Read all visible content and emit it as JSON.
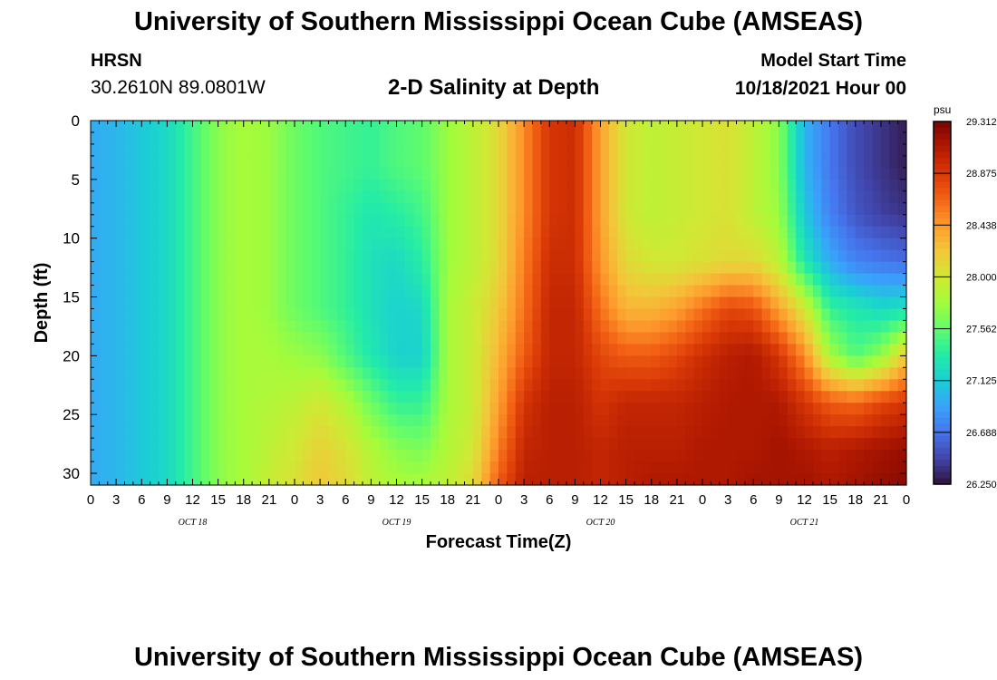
{
  "header": {
    "title": "University of Southern Mississippi Ocean Cube (AMSEAS)",
    "station": "HRSN",
    "coords": "30.2610N  89.0801W",
    "subtitle": "2-D Salinity at Depth",
    "start_label": "Model Start Time",
    "start_value": "10/18/2021 Hour 00"
  },
  "footer": {
    "title": "University of Southern Mississippi Ocean Cube (AMSEAS)"
  },
  "chart_data": {
    "type": "heatmap",
    "xlabel": "Forecast Time(Z)",
    "ylabel": "Depth (ft)",
    "x_unit": "hours since model start",
    "xlim": [
      0,
      96
    ],
    "ylim": [
      0,
      31
    ],
    "y_inverted": true,
    "x_tick_labels": [
      "0",
      "3",
      "6",
      "9",
      "12",
      "15",
      "18",
      "21",
      "0",
      "3",
      "6",
      "9",
      "12",
      "15",
      "18",
      "21",
      "0",
      "3",
      "6",
      "9",
      "12",
      "15",
      "18",
      "21",
      "0",
      "3",
      "6",
      "9",
      "12",
      "15",
      "18",
      "21",
      "0"
    ],
    "x_tick_hours": [
      0,
      3,
      6,
      9,
      12,
      15,
      18,
      21,
      24,
      27,
      30,
      33,
      36,
      39,
      42,
      45,
      48,
      51,
      54,
      57,
      60,
      63,
      66,
      69,
      72,
      75,
      78,
      81,
      84,
      87,
      90,
      93,
      96
    ],
    "day_labels": [
      {
        "hour": 12,
        "text": "OCT 18"
      },
      {
        "hour": 36,
        "text": "OCT 19"
      },
      {
        "hour": 60,
        "text": "OCT 20"
      },
      {
        "hour": 84,
        "text": "OCT 21"
      }
    ],
    "y_ticks": [
      0,
      5,
      10,
      15,
      20,
      25,
      30
    ],
    "colorbar": {
      "unit": "psu",
      "min": 26.25,
      "max": 29.312,
      "tick_labels": [
        "29.312",
        "28.875",
        "28.438",
        "28.000",
        "27.562",
        "27.125",
        "26.688",
        "26.250"
      ],
      "colors": [
        "#30123b",
        "#4145ab",
        "#4675ed",
        "#39a2fc",
        "#1bcfd4",
        "#24eca6",
        "#61fc6c",
        "#a4fc3b",
        "#d1e834",
        "#f3c63a",
        "#fe9b2d",
        "#f36315",
        "#d93806",
        "#b11901",
        "#7a0402"
      ]
    },
    "depths_ft": [
      0,
      4,
      8,
      12,
      16,
      20,
      24,
      28,
      31
    ],
    "hours": [
      0,
      3,
      6,
      9,
      12,
      15,
      18,
      21,
      24,
      27,
      30,
      33,
      36,
      39,
      42,
      45,
      48,
      51,
      54,
      57,
      60,
      63,
      66,
      69,
      72,
      75,
      78,
      81,
      84,
      87,
      90,
      93,
      96
    ],
    "values": [
      [
        26.95,
        27.0,
        27.1,
        27.2,
        27.45,
        27.7,
        27.8,
        27.75,
        27.6,
        27.5,
        27.45,
        27.4,
        27.5,
        27.55,
        27.75,
        27.9,
        28.1,
        28.5,
        28.9,
        28.95,
        28.4,
        28.0,
        27.9,
        27.95,
        28.0,
        28.05,
        27.9,
        27.7,
        27.0,
        26.7,
        26.5,
        26.4,
        26.3
      ],
      [
        26.95,
        27.0,
        27.1,
        27.2,
        27.45,
        27.7,
        27.8,
        27.75,
        27.6,
        27.5,
        27.45,
        27.4,
        27.5,
        27.55,
        27.75,
        27.9,
        28.1,
        28.5,
        28.9,
        28.95,
        28.4,
        28.0,
        27.9,
        27.95,
        28.0,
        28.05,
        27.9,
        27.7,
        27.0,
        26.7,
        26.5,
        26.4,
        26.3
      ],
      [
        26.95,
        27.0,
        27.1,
        27.2,
        27.45,
        27.7,
        27.8,
        27.75,
        27.6,
        27.5,
        27.4,
        27.3,
        27.35,
        27.45,
        27.75,
        27.9,
        28.1,
        28.5,
        28.9,
        28.95,
        28.4,
        28.0,
        27.9,
        27.95,
        28.0,
        28.05,
        27.9,
        27.75,
        27.1,
        26.75,
        26.55,
        26.45,
        26.4
      ],
      [
        26.95,
        27.0,
        27.1,
        27.2,
        27.45,
        27.7,
        27.8,
        27.75,
        27.6,
        27.5,
        27.4,
        27.25,
        27.2,
        27.35,
        27.75,
        27.9,
        28.1,
        28.55,
        28.95,
        28.95,
        28.45,
        28.1,
        28.0,
        28.0,
        28.05,
        28.1,
        28.1,
        27.9,
        27.3,
        26.95,
        26.75,
        26.7,
        26.65
      ],
      [
        26.95,
        27.0,
        27.1,
        27.2,
        27.45,
        27.7,
        27.8,
        27.75,
        27.6,
        27.5,
        27.4,
        27.25,
        27.15,
        27.2,
        27.8,
        27.95,
        28.2,
        28.6,
        29.0,
        29.0,
        28.6,
        28.3,
        28.3,
        28.4,
        28.6,
        28.8,
        28.75,
        28.4,
        28.0,
        27.4,
        27.3,
        27.2,
        27.25
      ],
      [
        26.95,
        27.0,
        27.1,
        27.2,
        27.45,
        27.7,
        27.8,
        27.8,
        27.75,
        27.7,
        27.5,
        27.3,
        27.15,
        27.15,
        27.8,
        27.95,
        28.3,
        28.7,
        29.0,
        29.0,
        28.8,
        28.7,
        28.7,
        28.8,
        28.95,
        29.05,
        29.1,
        28.9,
        28.5,
        27.8,
        27.5,
        27.7,
        28.2
      ],
      [
        26.95,
        27.0,
        27.1,
        27.2,
        27.45,
        27.7,
        27.8,
        27.85,
        27.9,
        28.0,
        27.85,
        27.6,
        27.4,
        27.4,
        27.8,
        27.95,
        28.4,
        28.9,
        29.05,
        29.05,
        28.9,
        29.0,
        29.0,
        29.0,
        29.05,
        29.1,
        29.1,
        29.1,
        28.9,
        28.7,
        28.65,
        28.8,
        28.9
      ],
      [
        26.95,
        27.0,
        27.1,
        27.2,
        27.45,
        27.7,
        27.8,
        27.9,
        28.0,
        28.15,
        28.05,
        27.85,
        27.7,
        27.65,
        27.85,
        28.0,
        28.55,
        29.0,
        29.05,
        29.05,
        29.0,
        29.05,
        29.05,
        29.05,
        29.1,
        29.1,
        29.1,
        29.15,
        29.1,
        29.05,
        29.1,
        29.15,
        29.2
      ],
      [
        26.95,
        27.0,
        27.1,
        27.2,
        27.45,
        27.7,
        27.8,
        27.95,
        28.05,
        28.2,
        28.1,
        27.9,
        27.8,
        27.8,
        27.9,
        28.1,
        28.7,
        29.05,
        29.05,
        29.05,
        29.0,
        29.05,
        29.1,
        29.1,
        29.1,
        29.1,
        29.15,
        29.15,
        29.15,
        29.1,
        29.15,
        29.2,
        29.25
      ]
    ]
  }
}
